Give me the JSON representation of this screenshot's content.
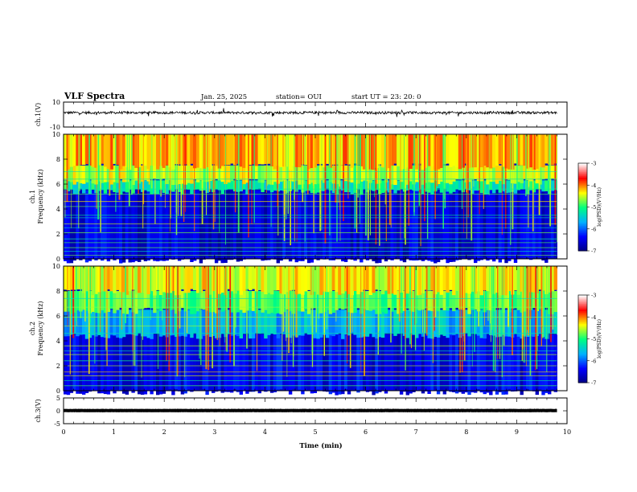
{
  "header": {
    "title": "VLF Spectra",
    "date": "Jan. 25, 2025",
    "station": "station= OUI",
    "start": "start  UT  =   23: 20: 0"
  },
  "chart_data": [
    {
      "type": "line",
      "panel": "ch1-waveform",
      "ylabel": "ch.1(V)",
      "ylim": [
        -10,
        10
      ],
      "yticks": [
        "10",
        "-10"
      ],
      "xlim": [
        0,
        10
      ],
      "baseline": 1.5,
      "amplitude": 1.0,
      "data_end": 9.8,
      "line_color": "#000000"
    },
    {
      "type": "heatmap",
      "panel": "ch1-spectrogram",
      "ylabel_line1": "ch.1",
      "ylabel_line2": "Frequency  (kHz)",
      "ylim": [
        0,
        10
      ],
      "yticks": [
        "0",
        "2",
        "4",
        "6",
        "8",
        "10"
      ],
      "xlim": [
        0,
        10
      ],
      "data_end": 9.8,
      "colorbar": {
        "label": "log(PSD)(V²/Hz)",
        "range": [
          -7,
          -3
        ],
        "ticks": [
          "-3",
          "-4",
          "-5",
          "-6",
          "-7"
        ],
        "colors": [
          "#000080",
          "#0000ff",
          "#00b0ff",
          "#00ff80",
          "#ffff00",
          "#ff0000",
          "#ffffff"
        ]
      },
      "bands": [
        {
          "from": 0,
          "to": 5.5,
          "level": 0.12
        },
        {
          "from": 5.5,
          "to": 6.3,
          "level": 0.45
        },
        {
          "from": 6.3,
          "to": 7.5,
          "level": 0.62
        },
        {
          "from": 7.5,
          "to": 10,
          "level": 0.72
        }
      ],
      "lines_khz": [
        0.3,
        0.6,
        0.9,
        1.3,
        1.6,
        2.1,
        2.5,
        2.8,
        3.3,
        3.5,
        4.2,
        4.6,
        5.2,
        5.6,
        6.4,
        7.0
      ]
    },
    {
      "type": "heatmap",
      "panel": "ch2-spectrogram",
      "ylabel_line1": "ch.2",
      "ylabel_line2": "Frequency  (kHz)",
      "ylim": [
        0,
        10
      ],
      "yticks": [
        "0",
        "2",
        "4",
        "6",
        "8",
        "10"
      ],
      "xlim": [
        0,
        10
      ],
      "data_end": 9.8,
      "colorbar": {
        "label": "log(PSD)(V²/Hz)",
        "range": [
          -7,
          -3
        ],
        "ticks": [
          "-3",
          "-4",
          "-5",
          "-6",
          "-7"
        ],
        "colors": [
          "#000080",
          "#0000ff",
          "#00b0ff",
          "#00ff80",
          "#ffff00",
          "#ff0000",
          "#ffffff"
        ]
      },
      "bands": [
        {
          "from": 0,
          "to": 4.5,
          "level": 0.14
        },
        {
          "from": 4.5,
          "to": 6.5,
          "level": 0.35
        },
        {
          "from": 6.5,
          "to": 8.0,
          "level": 0.55
        },
        {
          "from": 8.0,
          "to": 10,
          "level": 0.66
        }
      ],
      "lines_khz": [
        0.4,
        0.8,
        1.2,
        1.5,
        2.0,
        2.4,
        2.9,
        3.2,
        3.6,
        4.6,
        5.2,
        5.9,
        6.7,
        7.4
      ]
    },
    {
      "type": "line",
      "panel": "ch3-waveform",
      "ylabel": "ch.3(V)",
      "ylim": [
        -5,
        5
      ],
      "yticks": [
        "5",
        "0",
        "-5"
      ],
      "xlim": [
        0,
        10
      ],
      "baseline": 0.1,
      "amplitude": 0.05,
      "data_end": 9.8,
      "line_color": "#000000"
    }
  ],
  "xaxis": {
    "label": "Time  (min)",
    "ticks": [
      "0",
      "1",
      "2",
      "3",
      "4",
      "5",
      "6",
      "7",
      "8",
      "9",
      "10"
    ]
  }
}
